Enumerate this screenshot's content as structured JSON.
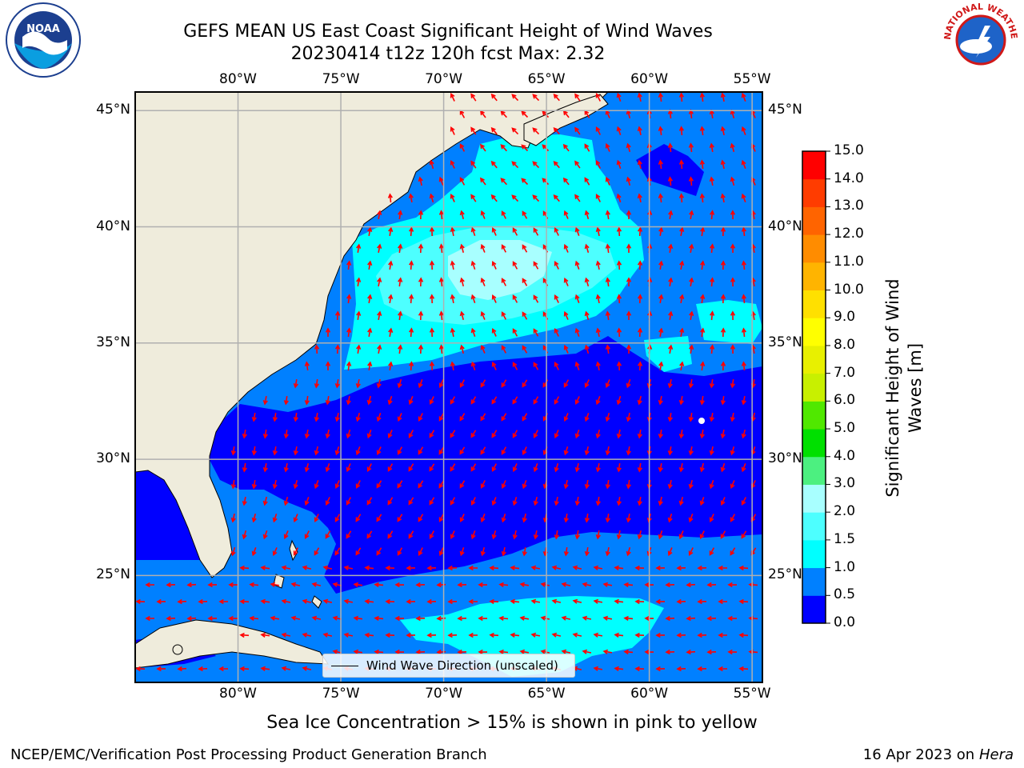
{
  "title": {
    "line1": "GEFS MEAN US East Coast Significant Height of Wind Waves",
    "line2": "20230414 t12z 120h fcst   Max: 2.32"
  },
  "logos": {
    "left": "NOAA",
    "right": "NATIONAL WEATHER SERVICE"
  },
  "map": {
    "lon_labels": [
      "80°W",
      "75°W",
      "70°W",
      "65°W",
      "60°W",
      "55°W"
    ],
    "lat_labels": [
      "45°N",
      "40°N",
      "35°N",
      "30°N",
      "25°N"
    ],
    "extent": {
      "lon": [
        -85,
        -54.5
      ],
      "lat": [
        20.4,
        45.8
      ]
    },
    "legend_label": "Wind Wave Direction (unscaled)",
    "colors": {
      "land": "#efecdc",
      "arrow": "#ff0000",
      "grid": "#b0b0b0"
    }
  },
  "colorbar": {
    "title_line1": "Significant Height of Wind",
    "title_line2": "Waves [m]",
    "ticks": [
      "15.0",
      "14.0",
      "13.0",
      "12.0",
      "11.0",
      "10.0",
      "9.0",
      "8.0",
      "7.0",
      "6.0",
      "5.0",
      "4.0",
      "3.0",
      "2.0",
      "1.5",
      "1.0",
      "0.5",
      "0.0"
    ],
    "bands": [
      {
        "from": 0.0,
        "to": 0.5,
        "color": "#0000ff"
      },
      {
        "from": 0.5,
        "to": 1.0,
        "color": "#0080ff"
      },
      {
        "from": 1.0,
        "to": 1.5,
        "color": "#00ffff"
      },
      {
        "from": 1.5,
        "to": 2.0,
        "color": "#4dffff"
      },
      {
        "from": 2.0,
        "to": 3.0,
        "color": "#a8ffff"
      },
      {
        "from": 3.0,
        "to": 4.0,
        "color": "#4cf080"
      },
      {
        "from": 4.0,
        "to": 5.0,
        "color": "#00e000"
      },
      {
        "from": 5.0,
        "to": 6.0,
        "color": "#50e800"
      },
      {
        "from": 6.0,
        "to": 7.0,
        "color": "#c8f000"
      },
      {
        "from": 7.0,
        "to": 8.0,
        "color": "#e8f000"
      },
      {
        "from": 8.0,
        "to": 9.0,
        "color": "#ffff00"
      },
      {
        "from": 9.0,
        "to": 10.0,
        "color": "#ffe000"
      },
      {
        "from": 10.0,
        "to": 11.0,
        "color": "#ffb400"
      },
      {
        "from": 11.0,
        "to": 12.0,
        "color": "#ff8c00"
      },
      {
        "from": 12.0,
        "to": 13.0,
        "color": "#ff6400"
      },
      {
        "from": 13.0,
        "to": 14.0,
        "color": "#ff3c00"
      },
      {
        "from": 14.0,
        "to": 15.0,
        "color": "#ff0000"
      }
    ]
  },
  "footer": {
    "ice_note": "Sea Ice Concentration > 15% is shown in pink to yellow",
    "left": "NCEP/EMC/Verification Post Processing Product Generation Branch",
    "date": "16 Apr 2023 on",
    "machine": "Hera"
  }
}
